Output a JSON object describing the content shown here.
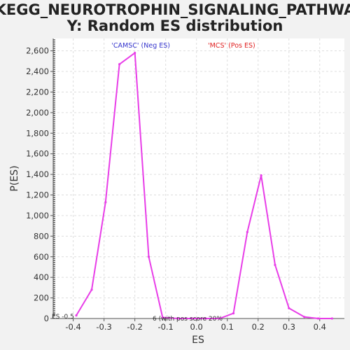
{
  "chart_data": {
    "type": "line",
    "title_line1": "KEGG_NEUROTROPHIN_SIGNALING_PATHWA",
    "title_line2": "Y: Random ES distribution",
    "xlabel": "ES",
    "ylabel": "P(ES)",
    "xlim": [
      -0.465,
      0.48
    ],
    "ylim": [
      0,
      2720
    ],
    "x_ticks": [
      -0.4,
      -0.3,
      -0.2,
      -0.1,
      0.0,
      0.1,
      0.2,
      0.3,
      0.4
    ],
    "x_tick_labels": [
      "-0.4",
      "-0.3",
      "-0.2",
      "-0.1",
      "0.0",
      "0.1",
      "0.2",
      "0.3",
      "0.4"
    ],
    "y_ticks": [
      0,
      200,
      400,
      600,
      800,
      1000,
      1200,
      1400,
      1600,
      1800,
      2000,
      2200,
      2400,
      2600
    ],
    "y_tick_labels": [
      "0",
      "200",
      "400",
      "600",
      "800",
      "1,000",
      "1,200",
      "1,400",
      "1,600",
      "1,800",
      "2,000",
      "2,200",
      "2,400",
      "2,600"
    ],
    "grid": true,
    "legend": [
      {
        "label": "'CAMSC' (Neg ES)",
        "color": "#3333cc"
      },
      {
        "label": "'MCS' (Pos ES)",
        "color": "#e02020"
      }
    ],
    "annotations": {
      "es_marker": "ES -0.5",
      "sample_note": "6 (with pos score 20%"
    },
    "series": [
      {
        "color": "#e83ee8",
        "x": [
          -0.39,
          -0.34,
          -0.295,
          -0.25,
          -0.2,
          -0.155,
          -0.11,
          -0.06,
          -0.015,
          0.03,
          0.075,
          0.12,
          0.165,
          0.21,
          0.255,
          0.3,
          0.35,
          0.395,
          0.44
        ],
        "y": [
          30,
          280,
          1130,
          2470,
          2580,
          600,
          10,
          0,
          0,
          0,
          0,
          50,
          840,
          1390,
          520,
          100,
          15,
          0,
          0
        ]
      }
    ]
  }
}
